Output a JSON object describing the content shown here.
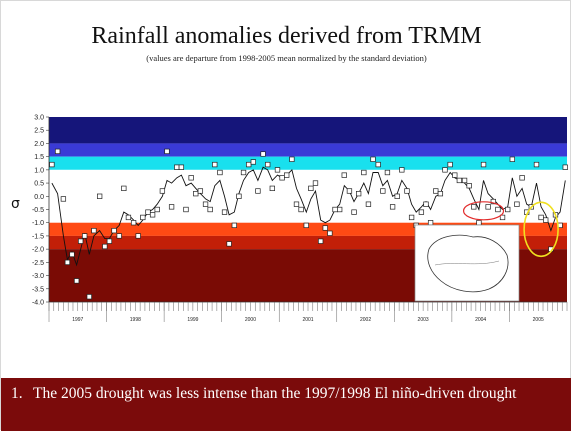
{
  "slide": {
    "title": "Rainfall anomalies derived from TRMM",
    "subtitle": "(values are departure from 1998-2005 mean normalized by the standard deviation)",
    "bullet_number": "1.",
    "bullet_text": "The 2005 drought was less intense than the 1997/1998 El niño-driven drought"
  },
  "chart_data": {
    "type": "scatter",
    "title": "",
    "ylabel": "σ",
    "xlabel": "",
    "ylim": [
      -4.0,
      3.0
    ],
    "xlim": [
      1997.0,
      2006.0
    ],
    "y_ticks": [
      "3.0",
      "2.5",
      "2.0",
      "1.5",
      "1.0",
      "0.5",
      "0.0",
      "-0.5",
      "-1.0",
      "-1.5",
      "-2.0",
      "-2.5",
      "-3.0",
      "-3.5",
      "-4.0"
    ],
    "year_labels": [
      "1997",
      "1998",
      "1999",
      "2000",
      "2001",
      "2002",
      "2003",
      "2004",
      "2005"
    ],
    "bands": [
      {
        "from": 2.0,
        "to": 3.0,
        "color": "#15157a"
      },
      {
        "from": 1.5,
        "to": 2.0,
        "color": "#3a3ad6"
      },
      {
        "from": 1.0,
        "to": 1.5,
        "color": "#19e0ee"
      },
      {
        "from": -1.0,
        "to": 1.0,
        "color": "#ffffff"
      },
      {
        "from": -1.5,
        "to": -1.0,
        "color": "#ff4a14"
      },
      {
        "from": -2.0,
        "to": -1.5,
        "color": "#c21f08"
      },
      {
        "from": -4.0,
        "to": -2.0,
        "color": "#7a0b05"
      }
    ],
    "series": [
      {
        "marker": "square",
        "x": [
          1997.05,
          1997.15,
          1997.25,
          1997.32,
          1997.4,
          1997.48,
          1997.55,
          1997.62,
          1997.7,
          1997.78,
          1997.88,
          1997.97,
          1998.05,
          1998.13,
          1998.22,
          1998.3,
          1998.38,
          1998.47,
          1998.55,
          1998.63,
          1998.72,
          1998.8,
          1998.88,
          1998.97,
          1999.05,
          1999.13,
          1999.22,
          1999.3,
          1999.38,
          1999.47,
          1999.55,
          1999.63,
          1999.72,
          1999.8,
          1999.88,
          1999.97,
          2000.05,
          2000.13,
          2000.22,
          2000.3,
          2000.38,
          2000.47,
          2000.55,
          2000.63,
          2000.72,
          2000.8,
          2000.88,
          2000.97,
          2001.05,
          2001.13,
          2001.22,
          2001.3,
          2001.38,
          2001.47,
          2001.55,
          2001.63,
          2001.72,
          2001.8,
          2001.88,
          2001.97,
          2002.05,
          2002.13,
          2002.22,
          2002.3,
          2002.38,
          2002.47,
          2002.55,
          2002.63,
          2002.72,
          2002.8,
          2002.88,
          2002.97,
          2003.05,
          2003.13,
          2003.22,
          2003.3,
          2003.38,
          2003.47,
          2003.55,
          2003.63,
          2003.72,
          2003.8,
          2003.88,
          2003.97,
          2004.05,
          2004.13,
          2004.22,
          2004.3,
          2004.38,
          2004.47,
          2004.55,
          2004.63,
          2004.72,
          2004.8,
          2004.88,
          2004.97,
          2005.05,
          2005.13,
          2005.22,
          2005.3,
          2005.38,
          2005.47,
          2005.55,
          2005.63,
          2005.72,
          2005.8,
          2005.88,
          2005.97
        ],
        "y": [
          1.2,
          1.7,
          -0.1,
          -2.5,
          -2.2,
          -3.2,
          -1.7,
          -1.5,
          -3.8,
          -1.3,
          0.0,
          -1.9,
          -1.7,
          -1.3,
          -1.5,
          0.3,
          -0.8,
          -1.0,
          -1.5,
          -0.8,
          -0.6,
          -0.7,
          -0.5,
          0.2,
          1.7,
          -0.4,
          1.1,
          1.1,
          -0.5,
          0.7,
          0.1,
          0.2,
          -0.3,
          -0.5,
          1.2,
          0.9,
          -0.6,
          -1.8,
          -1.1,
          0.0,
          0.9,
          1.2,
          1.3,
          0.2,
          1.6,
          1.2,
          0.3,
          1.0,
          0.7,
          0.8,
          1.4,
          -0.3,
          -0.5,
          -1.1,
          0.3,
          0.5,
          -1.7,
          -1.2,
          -1.4,
          -0.5,
          -0.5,
          0.8,
          0.2,
          -0.6,
          0.1,
          0.9,
          -0.3,
          1.4,
          1.2,
          0.2,
          0.9,
          -0.4,
          0.0,
          1.0,
          0.2,
          -0.8,
          -1.1,
          -0.6,
          -0.3,
          -1.0,
          0.2,
          0.1,
          1.0,
          1.2,
          0.8,
          0.6,
          0.6,
          0.4,
          -0.4,
          -1.0,
          1.2,
          -0.4,
          -0.2,
          -0.5,
          -0.8,
          -0.5,
          1.4,
          -0.3,
          0.7,
          -0.6,
          -0.4,
          1.2,
          -0.8,
          -0.9,
          -2.0,
          -0.7,
          -1.1,
          1.1
        ],
        "smooth": [
          0.5,
          0.1,
          -1.5,
          -2.4,
          -2.1,
          -2.6,
          -2.0,
          -1.4,
          -2.2,
          -1.5,
          -1.3,
          -1.6,
          -1.6,
          -1.3,
          -1.1,
          -0.6,
          -0.7,
          -0.9,
          -1.1,
          -0.9,
          -0.6,
          -0.5,
          -0.3,
          0.0,
          0.6,
          0.5,
          0.7,
          0.8,
          0.4,
          0.5,
          0.3,
          0.1,
          -0.1,
          -0.2,
          0.4,
          0.6,
          0.0,
          -0.7,
          -0.6,
          0.1,
          0.6,
          0.9,
          1.0,
          0.6,
          1.1,
          1.0,
          0.6,
          0.8,
          0.7,
          0.8,
          1.0,
          0.3,
          -0.1,
          -0.6,
          -0.1,
          0.2,
          -0.9,
          -1.0,
          -0.9,
          -0.5,
          -0.3,
          0.4,
          0.2,
          -0.2,
          0.1,
          0.5,
          0.1,
          0.9,
          0.9,
          0.4,
          0.6,
          0.0,
          0.1,
          0.6,
          0.3,
          -0.3,
          -0.6,
          -0.4,
          -0.2,
          -0.5,
          0.0,
          0.1,
          0.6,
          0.9,
          0.7,
          0.6,
          0.5,
          0.3,
          -0.1,
          -0.5,
          0.6,
          0.1,
          -0.1,
          -0.3,
          -0.5,
          -0.4,
          0.7,
          0.0,
          0.3,
          -0.3,
          -0.4,
          0.5,
          -0.4,
          -0.7,
          -1.3,
          -0.8,
          -0.6,
          0.6
        ]
      }
    ],
    "annotations": [
      {
        "shape": "ellipse",
        "color": "#e22b2b"
      },
      {
        "shape": "ellipse",
        "color": "#f0e020"
      },
      {
        "shape": "inset-map"
      }
    ]
  }
}
